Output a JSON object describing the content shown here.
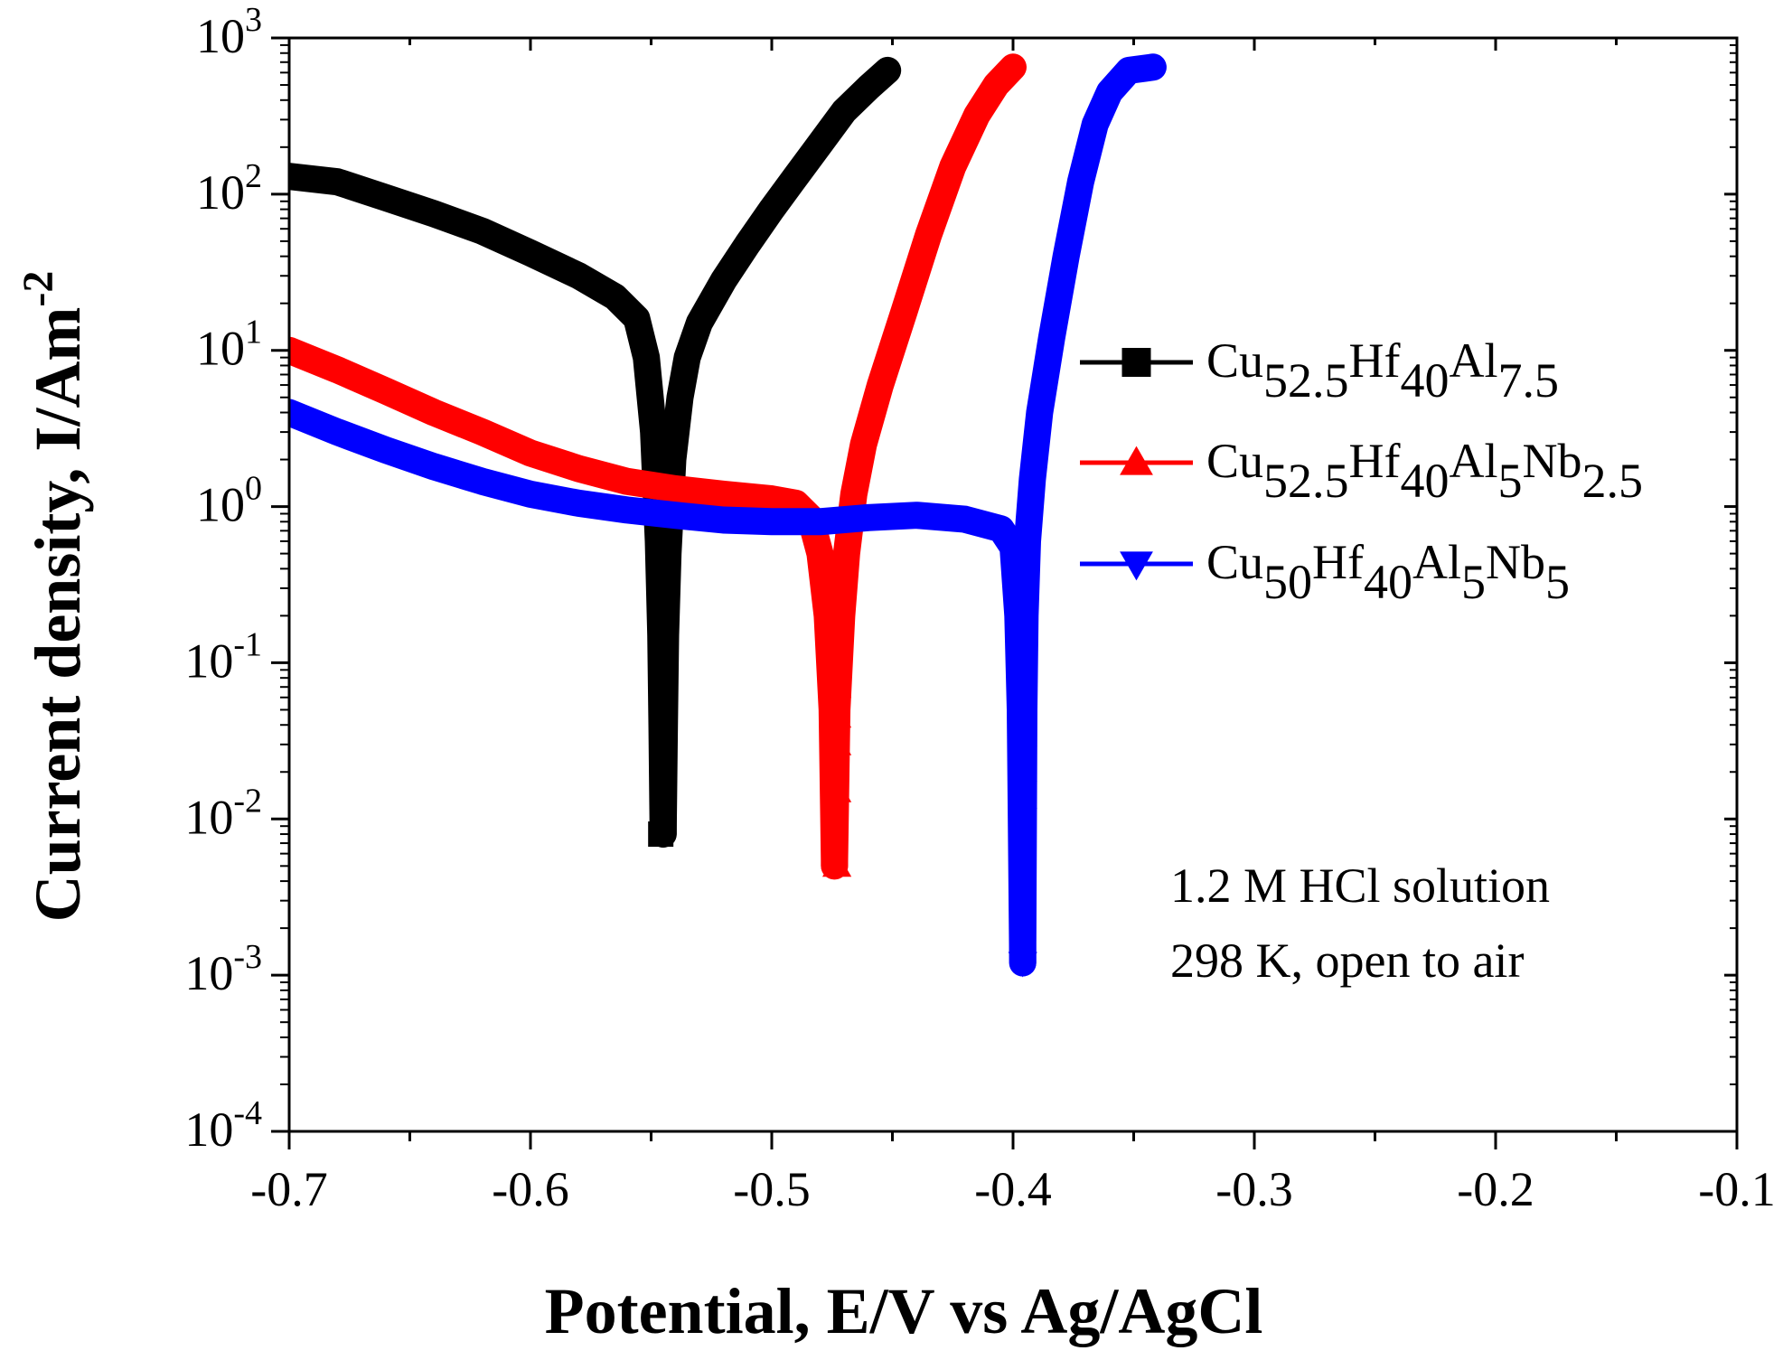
{
  "chart_data": {
    "type": "line",
    "xlabel": "Potential, E/V vs Ag/AgCl",
    "ylabel": "Current density, I/Am",
    "ylabel_sup": "-2",
    "xlim": [
      -0.7,
      -0.1
    ],
    "ylim": [
      0.0001,
      1000
    ],
    "y_scale": "log",
    "x_ticks": [
      "-0.7",
      "-0.6",
      "-0.5",
      "-0.4",
      "-0.3",
      "-0.2",
      "-0.1"
    ],
    "y_ticks": [
      {
        "base": "10",
        "exp": "-4"
      },
      {
        "base": "10",
        "exp": "-3"
      },
      {
        "base": "10",
        "exp": "-2"
      },
      {
        "base": "10",
        "exp": "-1"
      },
      {
        "base": "10",
        "exp": "0"
      },
      {
        "base": "10",
        "exp": "1"
      },
      {
        "base": "10",
        "exp": "2"
      },
      {
        "base": "10",
        "exp": "3"
      }
    ],
    "grid": false,
    "legend_position": "right",
    "annotations": [
      "1.2 M HCl solution",
      "298 K, open to air"
    ],
    "series": [
      {
        "name": "Cu52.5Hf40Al7.5",
        "name_parts": [
          {
            "t": "Cu",
            "sub": false
          },
          {
            "t": "52.5",
            "sub": true
          },
          {
            "t": "Hf",
            "sub": false
          },
          {
            "t": "40",
            "sub": true
          },
          {
            "t": "Al",
            "sub": false
          },
          {
            "t": "7.5",
            "sub": true
          }
        ],
        "color": "#000000",
        "marker": "square",
        "cathodic": [
          [
            -0.7,
            130
          ],
          [
            -0.68,
            120
          ],
          [
            -0.66,
            95
          ],
          [
            -0.64,
            75
          ],
          [
            -0.62,
            58
          ],
          [
            -0.6,
            42
          ],
          [
            -0.58,
            30
          ],
          [
            -0.565,
            22
          ],
          [
            -0.556,
            16
          ],
          [
            -0.552,
            9
          ],
          [
            -0.549,
            3
          ],
          [
            -0.547,
            0.6
          ],
          [
            -0.546,
            0.15
          ],
          [
            -0.5455,
            0.04
          ],
          [
            -0.545,
            0.008
          ]
        ],
        "anodic": [
          [
            -0.545,
            0.008
          ],
          [
            -0.5445,
            0.04
          ],
          [
            -0.544,
            0.15
          ],
          [
            -0.543,
            0.5
          ],
          [
            -0.541,
            2
          ],
          [
            -0.538,
            5
          ],
          [
            -0.535,
            9
          ],
          [
            -0.53,
            15
          ],
          [
            -0.52,
            28
          ],
          [
            -0.51,
            48
          ],
          [
            -0.5,
            80
          ],
          [
            -0.49,
            130
          ],
          [
            -0.48,
            210
          ],
          [
            -0.47,
            340
          ],
          [
            -0.46,
            480
          ],
          [
            -0.452,
            620
          ]
        ],
        "markers": [
          [
            -0.545,
            0.5
          ],
          [
            -0.545,
            0.17
          ],
          [
            -0.545,
            0.11
          ],
          [
            -0.545,
            0.035
          ],
          [
            -0.546,
            0.008
          ]
        ]
      },
      {
        "name": "Cu52.5Hf40Al5Nb2.5",
        "name_parts": [
          {
            "t": "Cu",
            "sub": false
          },
          {
            "t": "52.5",
            "sub": true
          },
          {
            "t": "Hf",
            "sub": false
          },
          {
            "t": "40",
            "sub": true
          },
          {
            "t": "Al",
            "sub": false
          },
          {
            "t": "5",
            "sub": true
          },
          {
            "t": "Nb",
            "sub": false
          },
          {
            "t": "2.5",
            "sub": true
          }
        ],
        "color": "#ff0000",
        "marker": "triangle-up",
        "cathodic": [
          [
            -0.7,
            10
          ],
          [
            -0.68,
            7.5
          ],
          [
            -0.66,
            5.5
          ],
          [
            -0.64,
            4
          ],
          [
            -0.62,
            3
          ],
          [
            -0.6,
            2.2
          ],
          [
            -0.58,
            1.75
          ],
          [
            -0.56,
            1.45
          ],
          [
            -0.54,
            1.3
          ],
          [
            -0.52,
            1.2
          ],
          [
            -0.5,
            1.12
          ],
          [
            -0.49,
            1.05
          ],
          [
            -0.484,
            0.85
          ],
          [
            -0.48,
            0.5
          ],
          [
            -0.477,
            0.2
          ],
          [
            -0.475,
            0.05
          ],
          [
            -0.474,
            0.005
          ]
        ],
        "anodic": [
          [
            -0.474,
            0.005
          ],
          [
            -0.473,
            0.05
          ],
          [
            -0.471,
            0.2
          ],
          [
            -0.469,
            0.5
          ],
          [
            -0.466,
            1.2
          ],
          [
            -0.462,
            2.5
          ],
          [
            -0.455,
            6
          ],
          [
            -0.445,
            18
          ],
          [
            -0.435,
            55
          ],
          [
            -0.425,
            150
          ],
          [
            -0.415,
            320
          ],
          [
            -0.407,
            500
          ],
          [
            -0.4,
            650
          ]
        ],
        "markers": [
          [
            -0.473,
            0.07
          ],
          [
            -0.473,
            0.045
          ],
          [
            -0.473,
            0.03
          ],
          [
            -0.473,
            0.015
          ],
          [
            -0.473,
            0.005
          ]
        ]
      },
      {
        "name": "Cu50Hf40Al5Nb5",
        "name_parts": [
          {
            "t": "Cu",
            "sub": false
          },
          {
            "t": "50",
            "sub": true
          },
          {
            "t": "Hf",
            "sub": false
          },
          {
            "t": "40",
            "sub": true
          },
          {
            "t": "Al",
            "sub": false
          },
          {
            "t": "5",
            "sub": true
          },
          {
            "t": "Nb",
            "sub": false
          },
          {
            "t": "5",
            "sub": true
          }
        ],
        "color": "#0000ff",
        "marker": "triangle-down",
        "cathodic": [
          [
            -0.7,
            4
          ],
          [
            -0.68,
            3
          ],
          [
            -0.66,
            2.3
          ],
          [
            -0.64,
            1.8
          ],
          [
            -0.62,
            1.45
          ],
          [
            -0.6,
            1.2
          ],
          [
            -0.58,
            1.05
          ],
          [
            -0.56,
            0.95
          ],
          [
            -0.54,
            0.88
          ],
          [
            -0.52,
            0.82
          ],
          [
            -0.5,
            0.8
          ],
          [
            -0.48,
            0.8
          ],
          [
            -0.46,
            0.85
          ],
          [
            -0.44,
            0.88
          ],
          [
            -0.42,
            0.83
          ],
          [
            -0.405,
            0.72
          ],
          [
            -0.4,
            0.55
          ],
          [
            -0.398,
            0.2
          ],
          [
            -0.397,
            0.05
          ],
          [
            -0.396,
            0.0012
          ]
        ],
        "anodic": [
          [
            -0.396,
            0.0012
          ],
          [
            -0.3955,
            0.05
          ],
          [
            -0.395,
            0.2
          ],
          [
            -0.394,
            0.6
          ],
          [
            -0.392,
            1.5
          ],
          [
            -0.389,
            4
          ],
          [
            -0.384,
            12
          ],
          [
            -0.378,
            40
          ],
          [
            -0.372,
            120
          ],
          [
            -0.366,
            280
          ],
          [
            -0.36,
            450
          ],
          [
            -0.352,
            620
          ],
          [
            -0.342,
            650
          ]
        ],
        "markers": [
          [
            -0.396,
            0.12
          ],
          [
            -0.396,
            0.07
          ],
          [
            -0.396,
            0.045
          ],
          [
            -0.396,
            0.025
          ],
          [
            -0.396,
            0.015
          ],
          [
            -0.396,
            0.01
          ],
          [
            -0.396,
            0.0012
          ]
        ]
      }
    ]
  }
}
